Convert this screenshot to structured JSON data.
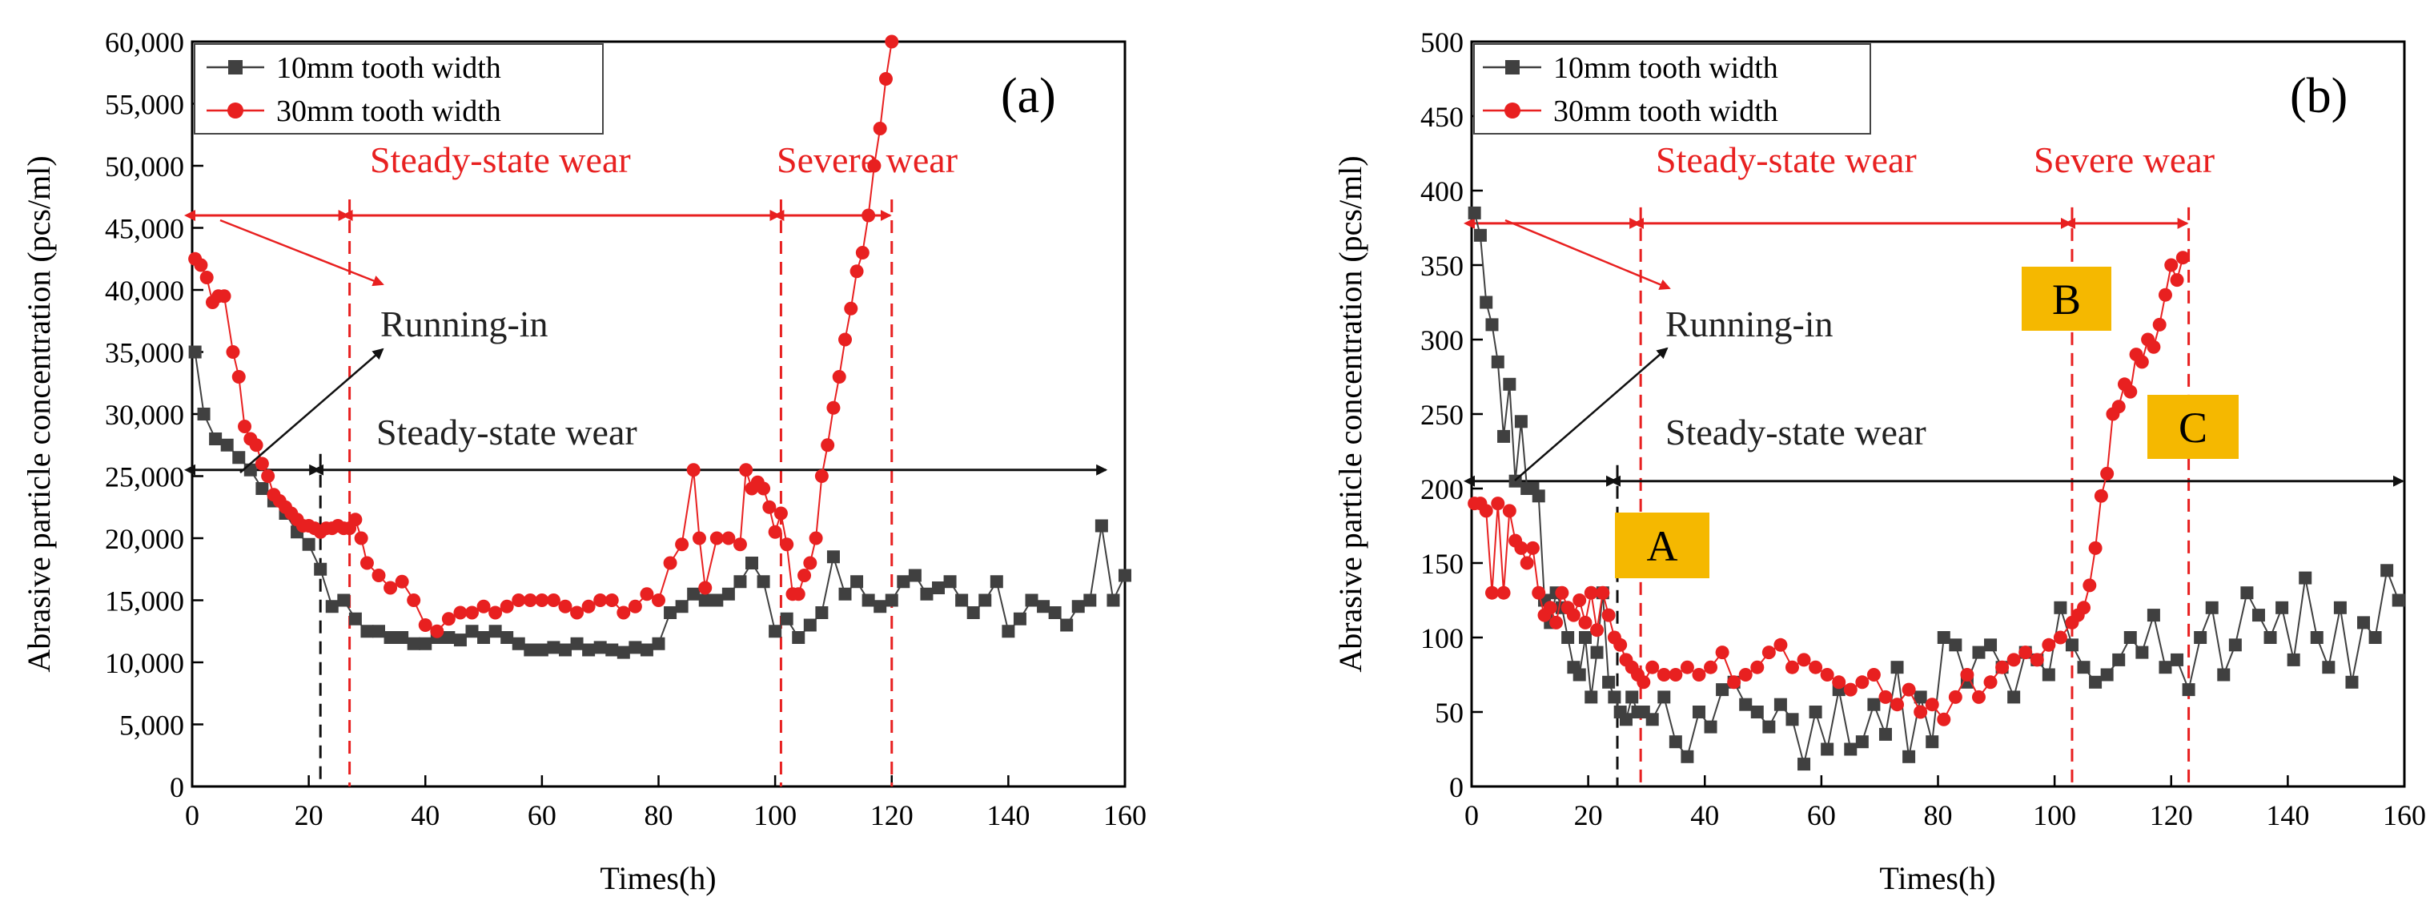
{
  "chart_data": [
    {
      "id": "a",
      "type": "scatter",
      "panel_label": "(a)",
      "xlabel": "Times(h)",
      "ylabel": "Abrasive particle concentration (pcs/ml)",
      "xlim": [
        0,
        160
      ],
      "ylim": [
        0,
        60000
      ],
      "xticks": [
        0,
        20,
        40,
        60,
        80,
        100,
        120,
        140,
        160
      ],
      "yticks": [
        0,
        5000,
        10000,
        15000,
        20000,
        25000,
        30000,
        35000,
        40000,
        45000,
        50000,
        55000,
        60000
      ],
      "ytick_labels": [
        "0",
        "5,000",
        "10,000",
        "15,000",
        "20,000",
        "25,000",
        "30,000",
        "35,000",
        "40,000",
        "45,000",
        "50,000",
        "55,000",
        "60,000"
      ],
      "legend_position": "top-left",
      "series": [
        {
          "name": "10mm tooth width",
          "color": "#404040",
          "marker": "square",
          "x": [
            0.5,
            2,
            4,
            6,
            8,
            10,
            12,
            14,
            16,
            18,
            20,
            22,
            24,
            26,
            28,
            30,
            32,
            34,
            36,
            38,
            40,
            42,
            44,
            46,
            48,
            50,
            52,
            54,
            56,
            58,
            60,
            62,
            64,
            66,
            68,
            70,
            72,
            74,
            76,
            78,
            80,
            82,
            84,
            86,
            88,
            90,
            92,
            94,
            96,
            98,
            100,
            102,
            104,
            106,
            108,
            110,
            112,
            114,
            116,
            118,
            120,
            122,
            124,
            126,
            128,
            130,
            132,
            134,
            136,
            138,
            140,
            142,
            144,
            146,
            148,
            150,
            152,
            154,
            156,
            158,
            160
          ],
          "y": [
            35000,
            30000,
            28000,
            27500,
            26500,
            25500,
            24000,
            23000,
            22000,
            20500,
            19500,
            17500,
            14500,
            15000,
            13500,
            12500,
            12500,
            12000,
            12000,
            11500,
            11500,
            12000,
            12000,
            11800,
            12500,
            12000,
            12500,
            12000,
            11500,
            11000,
            11000,
            11200,
            11000,
            11500,
            11000,
            11200,
            11000,
            10800,
            11200,
            11000,
            11500,
            14000,
            14500,
            15500,
            15000,
            15000,
            15500,
            16500,
            18000,
            16500,
            12500,
            13500,
            12000,
            13000,
            14000,
            18500,
            15500,
            16500,
            15000,
            14500,
            15000,
            16500,
            17000,
            15500,
            16000,
            16500,
            15000,
            14000,
            15000,
            16500,
            12500,
            13500,
            15000,
            14500,
            14000,
            13000,
            14500,
            15000,
            21000,
            15000,
            17000
          ]
        },
        {
          "name": "30mm tooth width",
          "color": "#e82020",
          "marker": "circle",
          "x": [
            0.5,
            1.5,
            2.5,
            3.5,
            4.5,
            5.5,
            7,
            8,
            9,
            10,
            11,
            12,
            13,
            14,
            15,
            16,
            17,
            18,
            19,
            20,
            21,
            22,
            23,
            24,
            25,
            26,
            27,
            28,
            29,
            30,
            32,
            34,
            36,
            38,
            40,
            42,
            44,
            46,
            48,
            50,
            52,
            54,
            56,
            58,
            60,
            62,
            64,
            66,
            68,
            70,
            72,
            74,
            76,
            78,
            80,
            82,
            84,
            86,
            87,
            88,
            90,
            92,
            94,
            95,
            96,
            97,
            98,
            99,
            100,
            101,
            102,
            103,
            104,
            105,
            106,
            107,
            108,
            109,
            110,
            111,
            112,
            113,
            114,
            115,
            116,
            117,
            118,
            119,
            120
          ],
          "y": [
            42500,
            42000,
            41000,
            39000,
            39500,
            39500,
            35000,
            33000,
            29000,
            28000,
            27500,
            26000,
            25000,
            23500,
            23000,
            22500,
            22000,
            21500,
            21000,
            21000,
            20800,
            20500,
            20800,
            20800,
            21000,
            20800,
            20800,
            21500,
            20000,
            18000,
            17000,
            16000,
            16500,
            15000,
            13000,
            12500,
            13500,
            14000,
            14000,
            14500,
            14000,
            14500,
            15000,
            15000,
            15000,
            15000,
            14500,
            14000,
            14500,
            15000,
            15000,
            14000,
            14500,
            15500,
            15000,
            18000,
            19500,
            25500,
            20000,
            16000,
            20000,
            20000,
            19500,
            25500,
            24000,
            24500,
            24000,
            22500,
            20500,
            22000,
            19500,
            15500,
            15500,
            17000,
            18000,
            20000,
            25000,
            27500,
            30500,
            33000,
            36000,
            38500,
            41500,
            43000,
            46000,
            50000,
            53000,
            57000,
            60000
          ]
        }
      ],
      "annotations": [
        {
          "text": "Steady-state wear",
          "color": "#e82020"
        },
        {
          "text": "Severe wear",
          "color": "#e82020"
        },
        {
          "text": "Running-in",
          "color": "#222222"
        },
        {
          "text": "Steady-state wear",
          "color": "#222222"
        }
      ],
      "vlines_red": [
        27,
        101,
        120
      ],
      "vline_black": 22,
      "arrow_red_y": 46000,
      "arrow_red_points": [
        0,
        27,
        101,
        120
      ],
      "arrow_black_y": 25500,
      "arrow_black_points": [
        0,
        22,
        157
      ]
    },
    {
      "id": "b",
      "type": "scatter",
      "panel_label": "(b)",
      "xlabel": "Times(h)",
      "ylabel": "Abrasive particle concentration (pcs/ml)",
      "xlim": [
        0,
        160
      ],
      "ylim": [
        0,
        500
      ],
      "xticks": [
        0,
        20,
        40,
        60,
        80,
        100,
        120,
        140,
        160
      ],
      "yticks": [
        0,
        50,
        100,
        150,
        200,
        250,
        300,
        350,
        400,
        450,
        500
      ],
      "ytick_labels": [
        "0",
        "50",
        "100",
        "150",
        "200",
        "250",
        "300",
        "350",
        "400",
        "450",
        "500"
      ],
      "legend_position": "top-left",
      "series": [
        {
          "name": "10mm tooth width",
          "color": "#404040",
          "marker": "square",
          "x": [
            0.5,
            1.5,
            2.5,
            3.5,
            4.5,
            5.5,
            6.5,
            7.5,
            8.5,
            9.5,
            10.5,
            11.5,
            12.5,
            13.5,
            14.5,
            15.5,
            16.5,
            17.5,
            18.5,
            19.5,
            20.5,
            21.5,
            22.5,
            23.5,
            24.5,
            25.5,
            26.5,
            27.5,
            28.5,
            29.5,
            31,
            33,
            35,
            37,
            39,
            41,
            43,
            45,
            47,
            49,
            51,
            53,
            55,
            57,
            59,
            61,
            63,
            65,
            67,
            69,
            71,
            73,
            75,
            77,
            79,
            81,
            83,
            85,
            87,
            89,
            91,
            93,
            95,
            97,
            99,
            101,
            103,
            105,
            107,
            109,
            111,
            113,
            115,
            117,
            119,
            121,
            123,
            125,
            127,
            129,
            131,
            133,
            135,
            137,
            139,
            141,
            143,
            145,
            147,
            149,
            151,
            153,
            155,
            157,
            159
          ],
          "y": [
            385,
            370,
            325,
            310,
            285,
            235,
            270,
            205,
            245,
            200,
            200,
            195,
            125,
            110,
            130,
            120,
            100,
            80,
            75,
            100,
            60,
            90,
            130,
            70,
            60,
            50,
            45,
            60,
            50,
            50,
            45,
            60,
            30,
            20,
            50,
            40,
            65,
            70,
            55,
            50,
            40,
            55,
            45,
            15,
            50,
            25,
            65,
            25,
            30,
            55,
            35,
            80,
            20,
            60,
            30,
            100,
            95,
            70,
            90,
            95,
            80,
            60,
            90,
            85,
            75,
            120,
            95,
            80,
            70,
            75,
            85,
            100,
            90,
            115,
            80,
            85,
            65,
            100,
            120,
            75,
            95,
            130,
            115,
            100,
            120,
            85,
            140,
            100,
            80,
            120,
            70,
            110,
            100,
            145,
            125
          ]
        },
        {
          "name": "30mm tooth width",
          "color": "#e82020",
          "marker": "circle",
          "x": [
            0.5,
            1.5,
            2.5,
            3.5,
            4.5,
            5.5,
            6.5,
            7.5,
            8.5,
            9.5,
            10.5,
            11.5,
            12.5,
            13.5,
            14.5,
            15.5,
            16.5,
            17.5,
            18.5,
            19.5,
            20.5,
            21.5,
            22.5,
            23.5,
            24.5,
            25.5,
            26.5,
            27.5,
            28.5,
            29.5,
            31,
            33,
            35,
            37,
            39,
            41,
            43,
            45,
            47,
            49,
            51,
            53,
            55,
            57,
            59,
            61,
            63,
            65,
            67,
            69,
            71,
            73,
            75,
            77,
            79,
            81,
            83,
            85,
            87,
            89,
            91,
            93,
            95,
            97,
            99,
            101,
            103,
            104,
            105,
            106,
            107,
            108,
            109,
            110,
            111,
            112,
            113,
            114,
            115,
            116,
            117,
            118,
            119,
            120,
            121,
            122
          ],
          "y": [
            190,
            190,
            185,
            130,
            190,
            130,
            185,
            165,
            160,
            150,
            160,
            130,
            115,
            120,
            110,
            130,
            120,
            115,
            125,
            110,
            130,
            105,
            130,
            115,
            100,
            95,
            85,
            80,
            75,
            70,
            80,
            75,
            75,
            80,
            75,
            80,
            90,
            70,
            75,
            80,
            90,
            95,
            80,
            85,
            80,
            75,
            70,
            65,
            70,
            75,
            60,
            55,
            65,
            50,
            55,
            45,
            60,
            75,
            60,
            70,
            80,
            85,
            90,
            85,
            95,
            100,
            110,
            115,
            120,
            135,
            160,
            195,
            210,
            250,
            255,
            270,
            265,
            290,
            285,
            300,
            295,
            310,
            330,
            350,
            340,
            355
          ]
        }
      ],
      "annotations": [
        {
          "text": "Steady-state wear",
          "color": "#e82020"
        },
        {
          "text": "Severe wear",
          "color": "#e82020"
        },
        {
          "text": "Running-in",
          "color": "#222222"
        },
        {
          "text": "Steady-state wear",
          "color": "#222222"
        }
      ],
      "boxes": [
        "A",
        "B",
        "C"
      ],
      "box_color": "#f5b800",
      "vlines_red": [
        29,
        103,
        123
      ],
      "vline_black": 25,
      "arrow_red_y": 378,
      "arrow_red_points": [
        0,
        29,
        103,
        123
      ],
      "arrow_black_y": 205,
      "arrow_black_points": [
        0,
        25,
        160
      ]
    }
  ]
}
